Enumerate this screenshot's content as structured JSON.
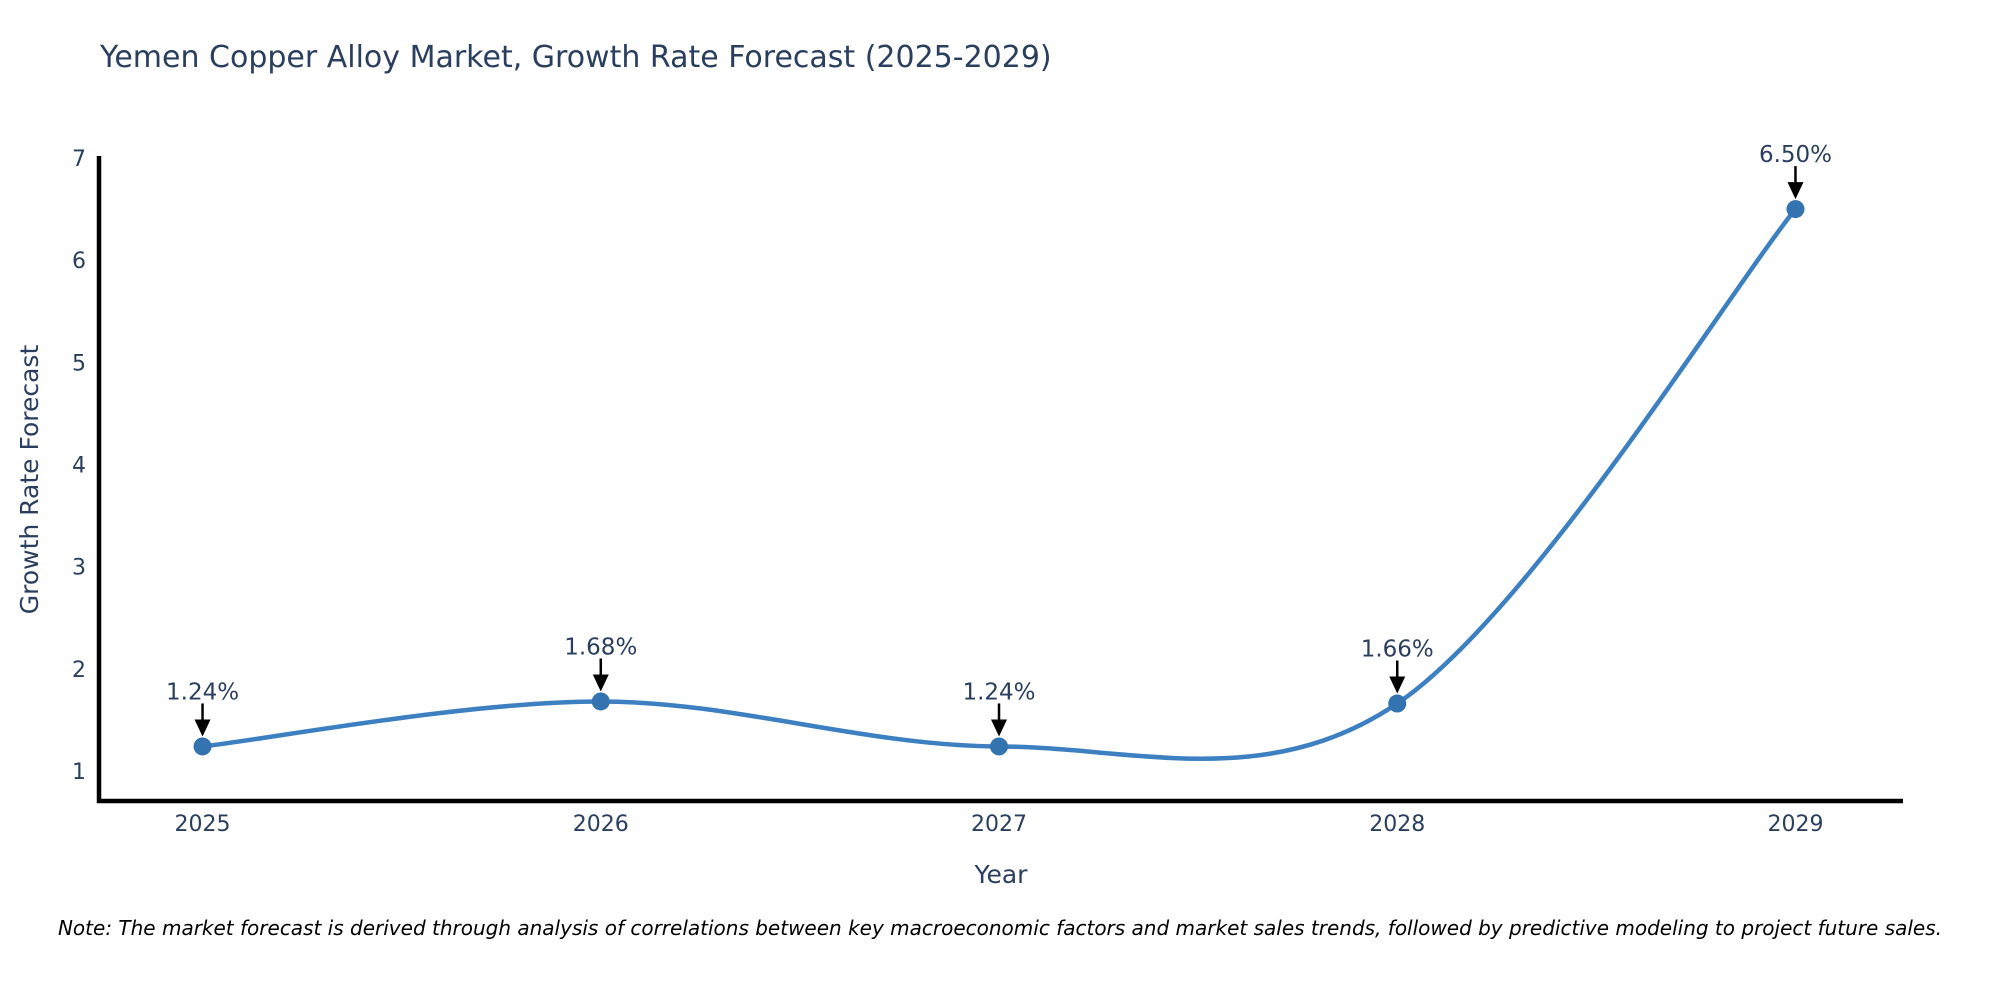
{
  "page": {
    "background": "#ffffff"
  },
  "chart_data": {
    "type": "line",
    "title": "Yemen Copper Alloy Market, Growth Rate Forecast (2025-2029)",
    "xlabel": "Year",
    "ylabel": "Growth Rate Forecast",
    "x": [
      2025,
      2026,
      2027,
      2028,
      2029
    ],
    "y": [
      1.24,
      1.68,
      1.24,
      1.66,
      6.5
    ],
    "point_labels": [
      "1.24%",
      "1.68%",
      "1.24%",
      "1.66%",
      "6.50%"
    ],
    "x_tick_labels": [
      "2025",
      "2026",
      "2027",
      "2028",
      "2029"
    ],
    "y_tick_values": [
      1,
      2,
      3,
      4,
      5,
      6,
      7
    ],
    "y_tick_labels": [
      "1",
      "2",
      "3",
      "4",
      "5",
      "6",
      "7"
    ],
    "xlim": [
      2024.74,
      2029.27
    ],
    "ylim": [
      0.706,
      7.0
    ],
    "grid": false,
    "legend": "none",
    "line_style": "smooth-spline",
    "marker": "circle",
    "colors": {
      "line": "#3d80c2",
      "marker": "#3273b0",
      "axis": "#000000",
      "tick_text": "#2a3f5f",
      "title_text": "#2a3f5f",
      "annotation_text": "#2a3f5f",
      "annotation_arrow": "#000000"
    }
  },
  "note": {
    "text": "Note: The market forecast is derived through analysis of correlations between key macroeconomic factors and market sales trends, followed by predictive modeling to project future sales."
  }
}
